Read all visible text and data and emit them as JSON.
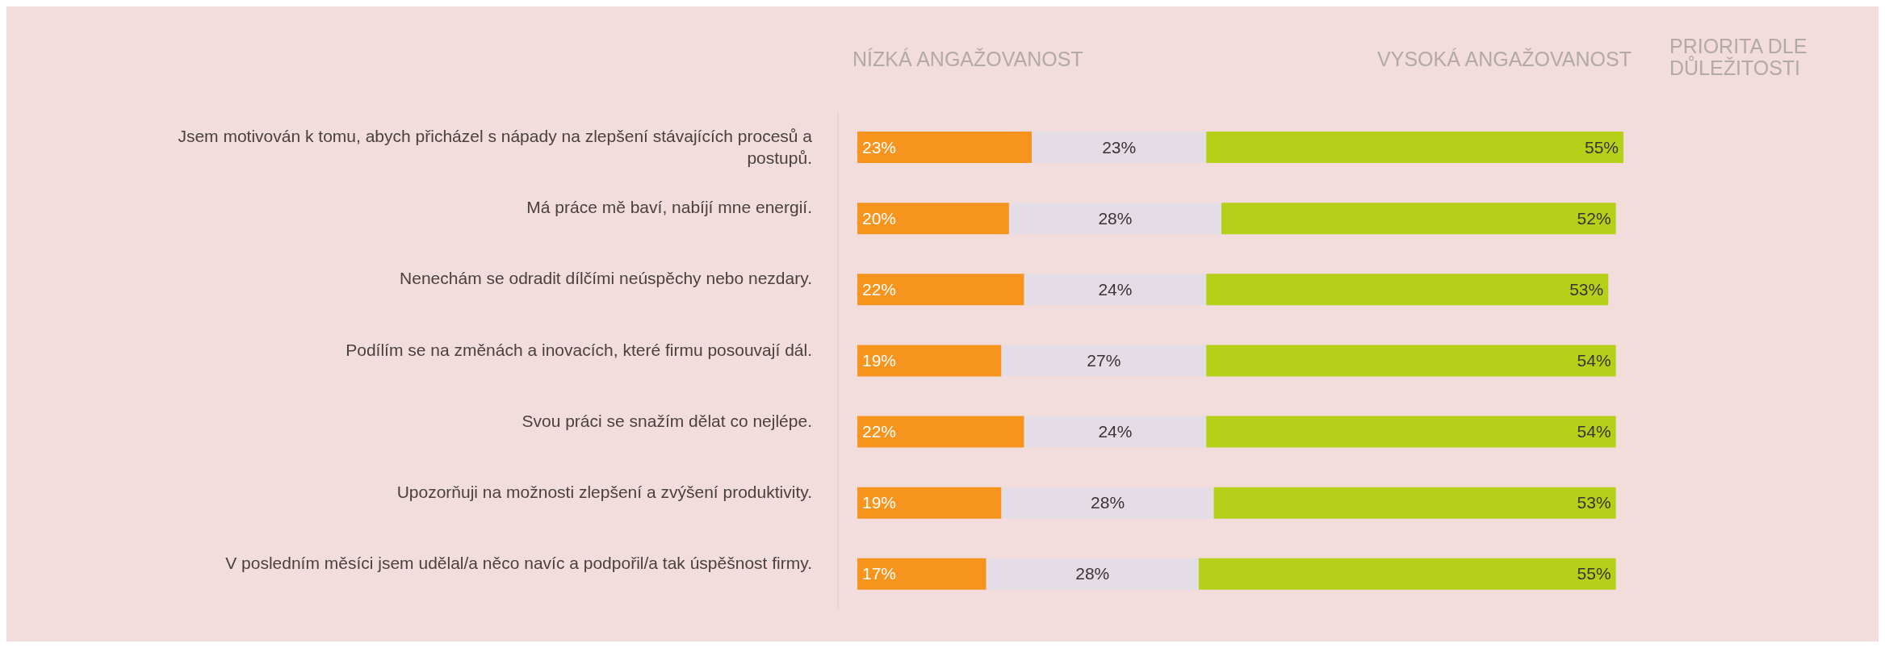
{
  "chart_data": {
    "type": "bar",
    "orientation": "horizontal",
    "stacked": true,
    "legend": false,
    "grid": false,
    "annotations": [
      "NÍZKÁ ANGAŽOVANOST",
      "VYSOKÁ ANGAŽOVANOST",
      "PRIORITA DLE DŮLEŽITOSTI"
    ],
    "categories": [
      "Jsem motivován k tomu, abych přicházel s nápady na zlepšení stávajících procesů a postupů.",
      "Má práce mě baví, nabíjí mne energií.",
      "Nenechám se odradit dílčími neúspěchy nebo nezdary.",
      "Podílím se na změnách a inovacích, které firmu posouvají dál.",
      "Svou práci se snažím dělat co nejlépe.",
      "Upozorňuji na možnosti zlepšení a zvýšení produktivity.",
      "V posledním měsíci jsem udělal/a něco navíc a podpořil/a tak úspěšnost firmy."
    ],
    "series": [
      {
        "color": "#f7941d",
        "values": [
          23,
          20,
          22,
          19,
          22,
          19,
          17
        ],
        "value_labels": [
          "23%",
          "20%",
          "22%",
          "19%",
          "22%",
          "19%",
          "17%"
        ]
      },
      {
        "color": "#e4dde6",
        "values": [
          23,
          28,
          24,
          27,
          24,
          28,
          28
        ],
        "value_labels": [
          "23%",
          "28%",
          "24%",
          "27%",
          "24%",
          "28%",
          "28%"
        ]
      },
      {
        "color": "#b5d018",
        "values": [
          55,
          52,
          53,
          54,
          54,
          53,
          55
        ],
        "value_labels": [
          "55%",
          "52%",
          "53%",
          "54%",
          "54%",
          "53%",
          "55%"
        ]
      }
    ]
  }
}
